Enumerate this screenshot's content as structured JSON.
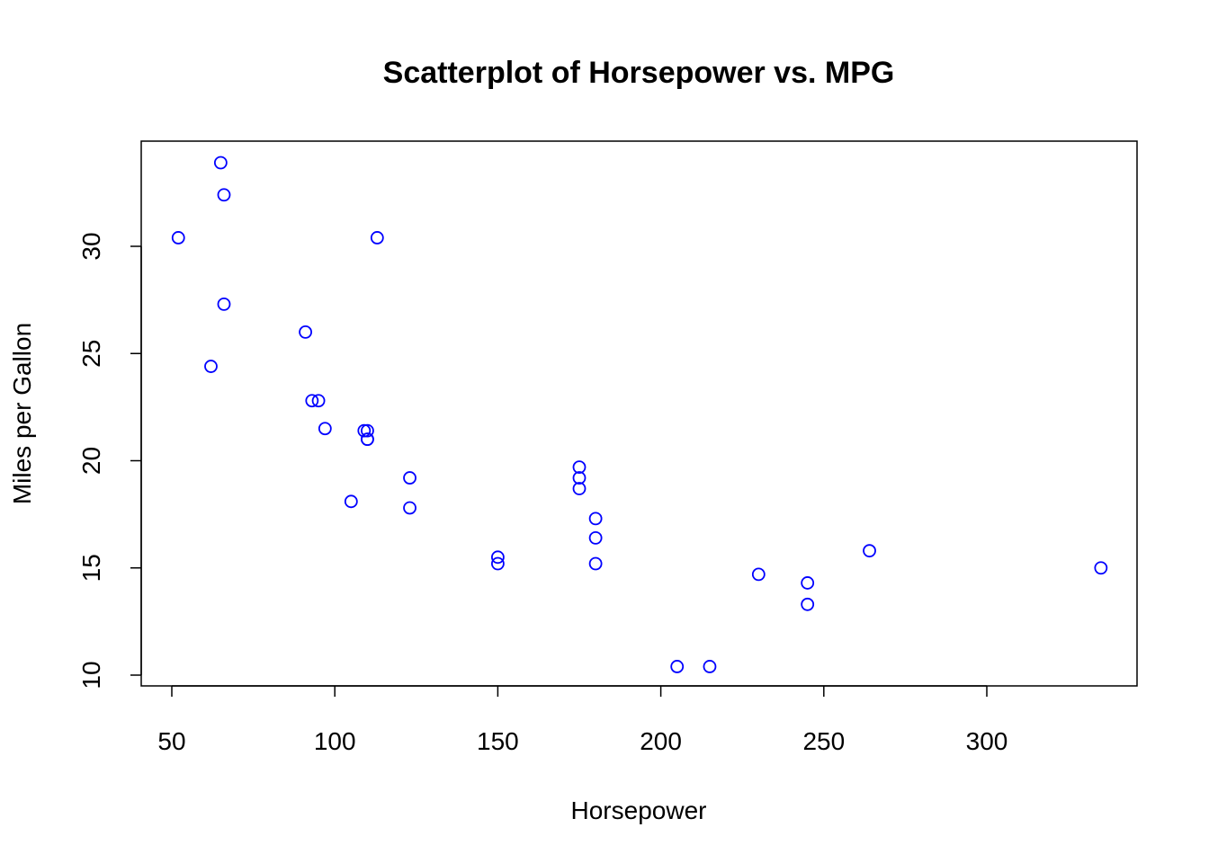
{
  "chart_data": {
    "type": "scatter",
    "title": "Scatterplot of Horsepower vs. MPG",
    "xlabel": "Horsepower",
    "ylabel": "Miles per Gallon",
    "xlim": [
      52,
      335
    ],
    "ylim": [
      10.4,
      33.9
    ],
    "x_ticks": [
      50,
      100,
      150,
      200,
      250,
      300
    ],
    "y_ticks": [
      10,
      15,
      20,
      25,
      30
    ],
    "grid": false,
    "legend": "none",
    "point_color": "#0000ff",
    "marker": "open-circle",
    "points": [
      {
        "x": 110,
        "y": 21.0
      },
      {
        "x": 110,
        "y": 21.0
      },
      {
        "x": 93,
        "y": 22.8
      },
      {
        "x": 110,
        "y": 21.4
      },
      {
        "x": 175,
        "y": 18.7
      },
      {
        "x": 105,
        "y": 18.1
      },
      {
        "x": 245,
        "y": 14.3
      },
      {
        "x": 62,
        "y": 24.4
      },
      {
        "x": 95,
        "y": 22.8
      },
      {
        "x": 123,
        "y": 19.2
      },
      {
        "x": 123,
        "y": 17.8
      },
      {
        "x": 180,
        "y": 16.4
      },
      {
        "x": 180,
        "y": 17.3
      },
      {
        "x": 180,
        "y": 15.2
      },
      {
        "x": 205,
        "y": 10.4
      },
      {
        "x": 215,
        "y": 10.4
      },
      {
        "x": 230,
        "y": 14.7
      },
      {
        "x": 66,
        "y": 32.4
      },
      {
        "x": 52,
        "y": 30.4
      },
      {
        "x": 65,
        "y": 33.9
      },
      {
        "x": 97,
        "y": 21.5
      },
      {
        "x": 150,
        "y": 15.5
      },
      {
        "x": 150,
        "y": 15.2
      },
      {
        "x": 245,
        "y": 13.3
      },
      {
        "x": 175,
        "y": 19.2
      },
      {
        "x": 66,
        "y": 27.3
      },
      {
        "x": 91,
        "y": 26.0
      },
      {
        "x": 113,
        "y": 30.4
      },
      {
        "x": 264,
        "y": 15.8
      },
      {
        "x": 175,
        "y": 19.7
      },
      {
        "x": 335,
        "y": 15.0
      },
      {
        "x": 109,
        "y": 21.4
      }
    ]
  }
}
